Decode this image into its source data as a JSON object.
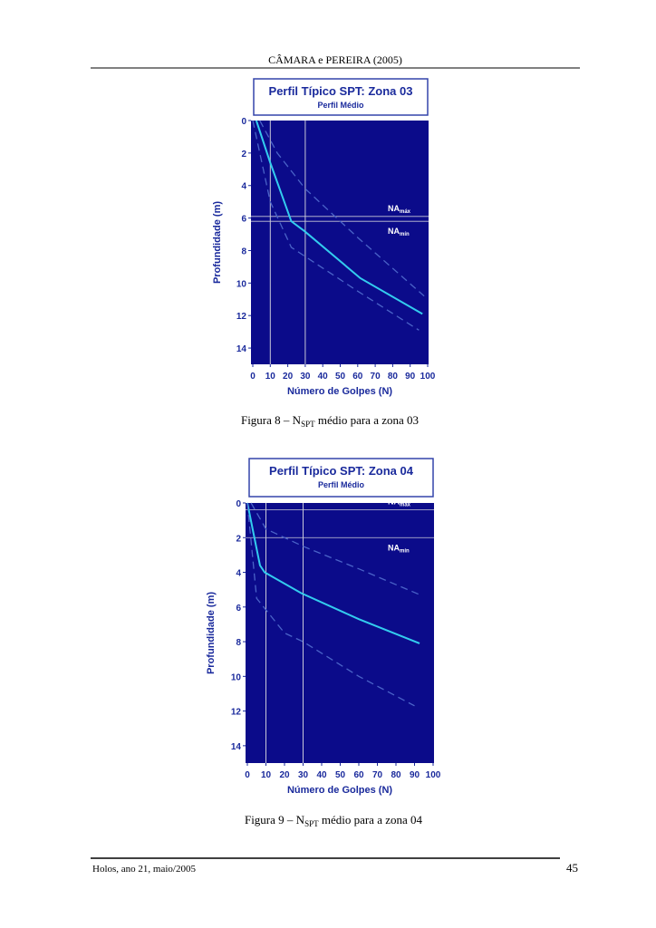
{
  "header": {
    "title": "CÂMARA e PEREIRA (2005)"
  },
  "chart_data": [
    {
      "type": "line",
      "title": "Perfil Típico SPT: Zona 03",
      "subtitle": "Perfil Médio",
      "x_label": "Número de Golpes (N)",
      "y_label": "Profundidade (m)",
      "xlim": [
        0,
        100
      ],
      "xticks": [
        0,
        10,
        20,
        30,
        40,
        50,
        60,
        70,
        80,
        90,
        100
      ],
      "ylim": [
        0,
        15
      ],
      "yticks": [
        0,
        2,
        4,
        6,
        8,
        10,
        12,
        14
      ],
      "y_inverted": true,
      "background": "#0b0b8a",
      "series": [
        {
          "color": "#33ccee",
          "dash": false,
          "x": [
            2,
            10,
            22,
            29.5,
            61.5,
            97
          ],
          "values": [
            0,
            2.6,
            6.2,
            6.8,
            9.7,
            11.9
          ]
        },
        {
          "color": "#4a63c8",
          "dash": true,
          "x": [
            4,
            14,
            30,
            60,
            98
          ],
          "values": [
            0,
            2,
            4.2,
            7.2,
            10.8
          ]
        },
        {
          "color": "#4a63c8",
          "dash": true,
          "x": [
            0,
            6,
            10,
            22,
            60,
            95
          ],
          "values": [
            0,
            3,
            5,
            7.8,
            10.5,
            12.9
          ]
        }
      ],
      "vlines": [
        10,
        30
      ],
      "hlines": [
        {
          "value": 5.9,
          "label": "NA",
          "sub": "máx"
        },
        {
          "value": 6.2,
          "label": "NA",
          "sub": "mín"
        }
      ]
    },
    {
      "type": "line",
      "title": "Perfil Típico SPT: Zona 04",
      "subtitle": "Perfil Médio",
      "x_label": "Número de Golpes (N)",
      "y_label": "Profundidade (m)",
      "xlim": [
        0,
        100
      ],
      "xticks": [
        0,
        10,
        20,
        30,
        40,
        50,
        60,
        70,
        80,
        90,
        100
      ],
      "ylim": [
        0,
        15
      ],
      "yticks": [
        0,
        2,
        4,
        6,
        8,
        10,
        12,
        14
      ],
      "y_inverted": true,
      "background": "#0b0b8a",
      "series": [
        {
          "color": "#33ccee",
          "dash": false,
          "x": [
            0,
            6.8,
            9.3,
            29,
            60,
            92.7
          ],
          "values": [
            0,
            3.6,
            4,
            5.2,
            6.7,
            8.1
          ]
        },
        {
          "color": "#4a63c8",
          "dash": true,
          "x": [
            2,
            10,
            30,
            60,
            93
          ],
          "values": [
            0,
            1.5,
            2.5,
            3.8,
            5.3
          ]
        },
        {
          "color": "#4a63c8",
          "dash": true,
          "x": [
            0,
            5,
            20,
            30,
            60,
            90
          ],
          "values": [
            0,
            5.5,
            7.5,
            8,
            10,
            11.7
          ]
        }
      ],
      "vlines": [
        10,
        30
      ],
      "hlines": [
        {
          "value": 0.4,
          "label": "NA",
          "sub": "máx"
        },
        {
          "value": 2,
          "label": "NA",
          "sub": "mín"
        }
      ]
    }
  ],
  "captions": [
    {
      "pre": "Figura 8 – N",
      "sub": "SPT",
      "post": " médio para a zona 03"
    },
    {
      "pre": "Figura 9 – N",
      "sub": "SPT",
      "post": " médio para a zona 04"
    }
  ],
  "footer": {
    "left": "Holos, ano 21, maio/2005",
    "page": "45"
  }
}
